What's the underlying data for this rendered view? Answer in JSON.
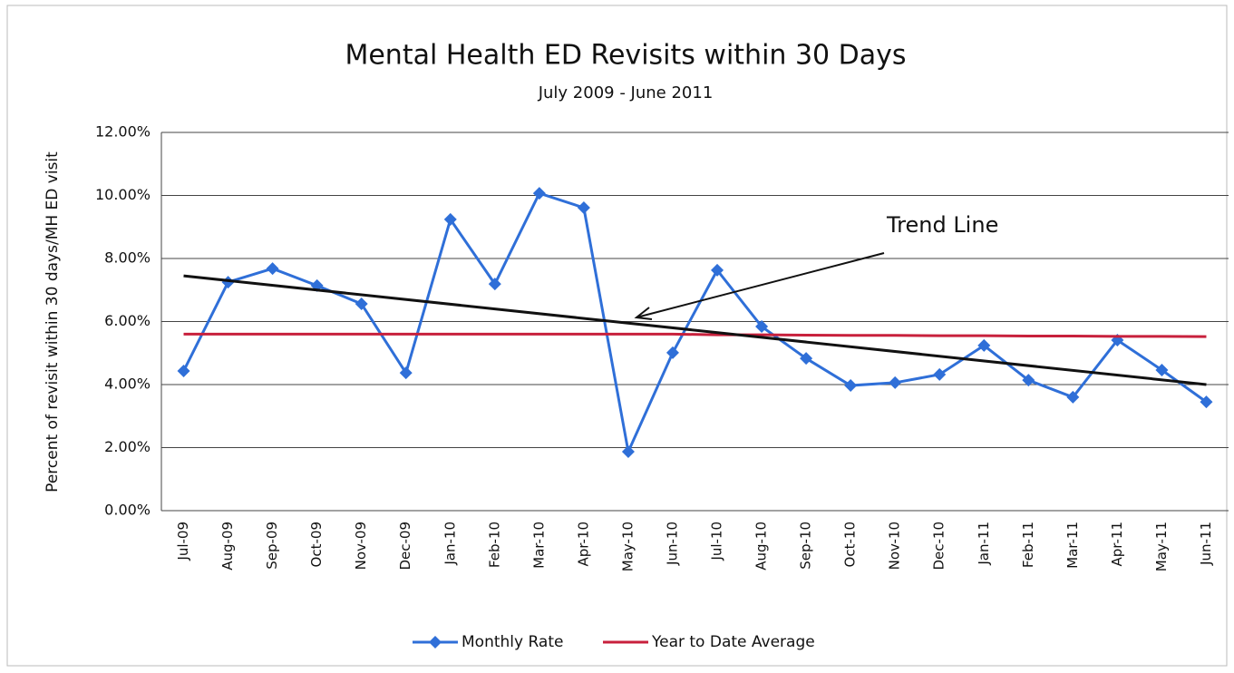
{
  "chart_data": {
    "type": "line",
    "title": "Mental Health ED Revisits within 30 Days",
    "subtitle": "July 2009 - June 2011",
    "y_label": "Percent of revisit within 30 days/MH ED visit",
    "categories": [
      "Jul-09",
      "Aug-09",
      "Sep-09",
      "Oct-09",
      "Nov-09",
      "Dec-09",
      "Jan-10",
      "Feb-10",
      "Mar-10",
      "Apr-10",
      "May-10",
      "Jun-10",
      "Jul-10",
      "Aug-10",
      "Sep-10",
      "Oct-10",
      "Nov-10",
      "Dec-10",
      "Jan-11",
      "Feb-11",
      "Mar-11",
      "Apr-11",
      "May-11",
      "Jun-11"
    ],
    "series": [
      {
        "name": "Monthly Rate",
        "color": "#2f6fd8",
        "marker": "diamond",
        "values": [
          4.43,
          7.25,
          7.68,
          7.14,
          6.56,
          4.37,
          9.24,
          7.19,
          10.07,
          9.61,
          1.87,
          5.01,
          7.63,
          5.84,
          4.83,
          3.97,
          4.06,
          4.32,
          5.24,
          4.14,
          3.6,
          5.41,
          4.46,
          3.45
        ]
      },
      {
        "name": "Year to Date Average",
        "color": "#c8203c",
        "values": [
          5.6,
          5.6,
          5.6,
          5.6,
          5.6,
          5.6,
          5.6,
          5.6,
          5.6,
          5.6,
          5.6,
          5.6,
          5.58,
          5.58,
          5.57,
          5.56,
          5.56,
          5.55,
          5.55,
          5.54,
          5.54,
          5.53,
          5.53,
          5.52
        ]
      }
    ],
    "trend_line": {
      "color": "#111111",
      "values": [
        7.45,
        4.0
      ]
    },
    "annotation": "Trend Line",
    "ylim": [
      0,
      12
    ],
    "yticks": [
      {
        "value": 0,
        "label": "0.00%"
      },
      {
        "value": 2,
        "label": "2.00%"
      },
      {
        "value": 4,
        "label": "4.00%"
      },
      {
        "value": 6,
        "label": "6.00%"
      },
      {
        "value": 8,
        "label": "8.00%"
      },
      {
        "value": 10,
        "label": "10.00%"
      },
      {
        "value": 12,
        "label": "12.00%"
      }
    ],
    "grid": true,
    "legend": "bottom"
  }
}
